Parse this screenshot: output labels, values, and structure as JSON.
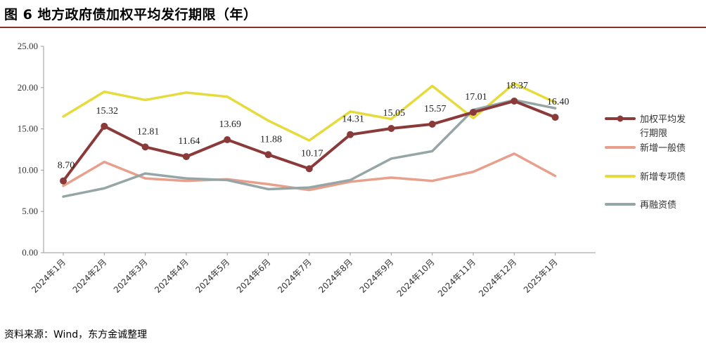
{
  "title": "图 6  地方政府债加权平均发行期限（年）",
  "source": "资料来源：Wind，东方金诚整理",
  "colors": {
    "weighted": "#8B3A3A",
    "general": "#E8A08C",
    "special": "#E6DB3C",
    "refinance": "#96A6A6",
    "axis": "#999999",
    "rule": "#8B2E2E"
  },
  "chart_data": {
    "type": "line",
    "categories": [
      "2024年1月",
      "2024年2月",
      "2024年3月",
      "2024年4月",
      "2024年5月",
      "2024年6月",
      "2024年7月",
      "2024年8月",
      "2024年9月",
      "2024年10月",
      "2024年11月",
      "2024年12月",
      "2025年1月"
    ],
    "ylim": [
      0,
      25
    ],
    "yticks": [
      "0.00",
      "5.00",
      "10.00",
      "15.00",
      "20.00",
      "25.00"
    ],
    "legend_position": "right",
    "series": [
      {
        "name": "加权平均发行期限",
        "legend_lines": [
          "加权平均发",
          "行期限"
        ],
        "color": "#8B3A3A",
        "markers": true,
        "values": [
          8.7,
          15.32,
          12.81,
          11.64,
          13.69,
          11.88,
          10.17,
          14.31,
          15.05,
          15.57,
          17.01,
          18.37,
          16.4
        ],
        "labels": [
          "8.70",
          "15.32",
          "12.81",
          "11.64",
          "13.69",
          "11.88",
          "10.17",
          "14.31",
          "15.05",
          "15.57",
          "17.01",
          "18.37",
          "16.40"
        ]
      },
      {
        "name": "新增一般债",
        "legend_lines": [
          "新增一般债"
        ],
        "color": "#E8A08C",
        "markers": false,
        "values": [
          8.1,
          11.0,
          9.0,
          8.7,
          8.9,
          8.3,
          7.6,
          8.6,
          9.1,
          8.7,
          9.8,
          12.0,
          9.3
        ]
      },
      {
        "name": "新增专项债",
        "legend_lines": [
          "新增专项债"
        ],
        "color": "#E6DB3C",
        "markers": false,
        "values": [
          16.5,
          19.5,
          18.5,
          19.4,
          18.9,
          16.0,
          13.6,
          17.1,
          16.2,
          20.2,
          16.3,
          20.5,
          18.2
        ]
      },
      {
        "name": "再融资债",
        "legend_lines": [
          "再融资债"
        ],
        "color": "#96A6A6",
        "markers": false,
        "values": [
          6.8,
          7.8,
          9.6,
          9.0,
          8.8,
          7.7,
          7.9,
          8.8,
          11.4,
          12.3,
          17.3,
          18.5,
          17.5
        ]
      }
    ]
  }
}
